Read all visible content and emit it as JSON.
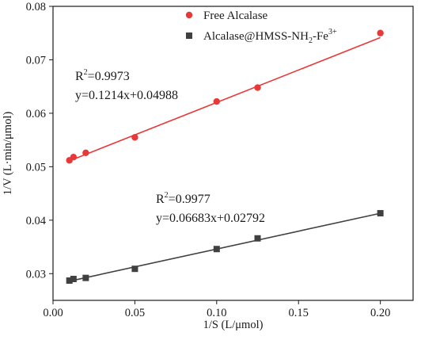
{
  "chart_data": {
    "type": "scatter",
    "title": "",
    "xlabel": "1/S (L/μmol)",
    "ylabel": "1/V (L·min/μmol)",
    "xlim": [
      0.0,
      0.22
    ],
    "ylim": [
      0.025,
      0.08
    ],
    "xticks": [
      0.0,
      0.05,
      0.1,
      0.15,
      0.2
    ],
    "xtick_labels": [
      "0.00",
      "0.05",
      "0.10",
      "0.15",
      "0.20"
    ],
    "yticks": [
      0.03,
      0.04,
      0.05,
      0.06,
      0.07,
      0.08
    ],
    "ytick_labels": [
      "0.03",
      "0.04",
      "0.05",
      "0.06",
      "0.07",
      "0.08"
    ],
    "grid": false,
    "legend_position": "top-right",
    "series": [
      {
        "name": "Free Alcalase",
        "marker": "circle",
        "color": "#e8393a",
        "x": [
          0.01,
          0.0125,
          0.02,
          0.05,
          0.1,
          0.125,
          0.2
        ],
        "y": [
          0.0512,
          0.0518,
          0.0526,
          0.0555,
          0.0622,
          0.0648,
          0.075
        ],
        "fit": {
          "slope": 0.1214,
          "intercept": 0.04988,
          "range": [
            0.01,
            0.2
          ]
        },
        "r2_label": "R",
        "r2_sup": "2",
        "r2_value": "=0.9973",
        "equation": "y=0.1214x+0.04988"
      },
      {
        "name_main": "Alcalase@HMSS-NH",
        "name_sub": "2",
        "name_mid": "-Fe",
        "name_sup": "3+",
        "marker": "square",
        "color": "#404040",
        "x": [
          0.01,
          0.0125,
          0.02,
          0.05,
          0.1,
          0.125,
          0.2
        ],
        "y": [
          0.0287,
          0.029,
          0.0292,
          0.0309,
          0.0346,
          0.0366,
          0.0413
        ],
        "fit": {
          "slope": 0.06683,
          "intercept": 0.02792,
          "range": [
            0.01,
            0.2
          ]
        },
        "r2_label": "R",
        "r2_sup": "2",
        "r2_value": "=0.9977",
        "equation": "y=0.06683x+0.02792"
      }
    ]
  }
}
